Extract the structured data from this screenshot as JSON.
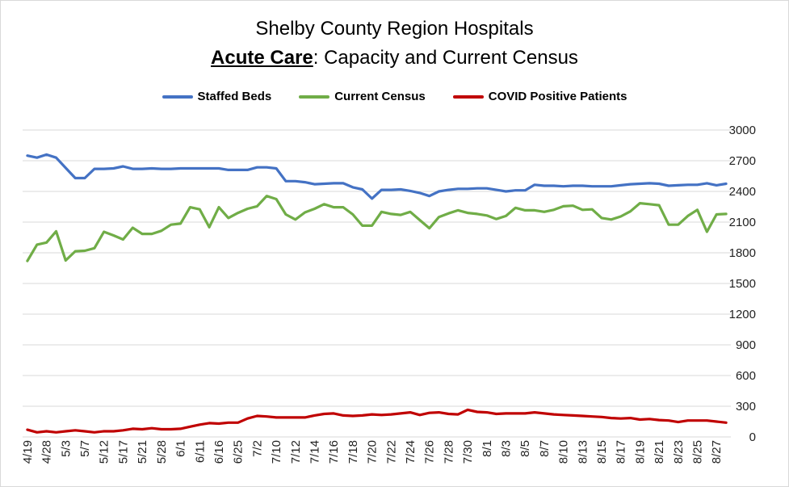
{
  "chart_data": {
    "type": "line",
    "title_line1": "Shelby County Region Hospitals",
    "title_emphasis": "Acute Care",
    "title_suffix": ": Capacity and Current Census",
    "ylim": [
      0,
      3000
    ],
    "yticks": [
      0,
      300,
      600,
      900,
      1200,
      1500,
      1800,
      2100,
      2400,
      2700,
      3000
    ],
    "grid": true,
    "legend_position": "top",
    "x_tick_labels": [
      "4/19",
      "4/28",
      "5/3",
      "5/7",
      "5/12",
      "5/17",
      "5/21",
      "5/28",
      "6/1",
      "6/11",
      "6/16",
      "6/25",
      "7/2",
      "7/10",
      "7/12",
      "7/14",
      "7/16",
      "7/18",
      "7/20",
      "7/22",
      "7/24",
      "7/26",
      "7/28",
      "7/30",
      "8/1",
      "8/3",
      "8/5",
      "8/7",
      "8/10",
      "8/13",
      "8/15",
      "8/17",
      "8/19",
      "8/21",
      "8/23",
      "8/25",
      "8/27"
    ],
    "series": [
      {
        "name": "Staffed Beds",
        "color": "#4472c4",
        "values": [
          2750,
          2730,
          2760,
          2730,
          2630,
          2530,
          2530,
          2620,
          2620,
          2625,
          2645,
          2620,
          2620,
          2625,
          2620,
          2620,
          2625,
          2625,
          2625,
          2625,
          2625,
          2610,
          2610,
          2610,
          2635,
          2635,
          2625,
          2500,
          2500,
          2490,
          2470,
          2475,
          2480,
          2480,
          2440,
          2420,
          2330,
          2415,
          2415,
          2420,
          2405,
          2385,
          2355,
          2400,
          2415,
          2425,
          2425,
          2430,
          2430,
          2415,
          2400,
          2410,
          2410,
          2465,
          2455,
          2455,
          2450,
          2455,
          2455,
          2450,
          2450,
          2450,
          2460,
          2470,
          2475,
          2480,
          2475,
          2455,
          2460,
          2465,
          2465,
          2480,
          2460,
          2475
        ]
      },
      {
        "name": "Current Census",
        "color": "#70ad47",
        "values": [
          1720,
          1880,
          1900,
          2010,
          1725,
          1815,
          1820,
          1845,
          2005,
          1970,
          1930,
          2045,
          1985,
          1985,
          2015,
          2075,
          2085,
          2245,
          2225,
          2050,
          2245,
          2140,
          2190,
          2230,
          2255,
          2355,
          2325,
          2175,
          2125,
          2195,
          2230,
          2275,
          2245,
          2245,
          2175,
          2065,
          2065,
          2200,
          2180,
          2170,
          2200,
          2120,
          2040,
          2150,
          2185,
          2215,
          2190,
          2180,
          2165,
          2130,
          2160,
          2240,
          2215,
          2215,
          2200,
          2220,
          2255,
          2260,
          2220,
          2225,
          2140,
          2125,
          2155,
          2205,
          2285,
          2275,
          2265,
          2075,
          2075,
          2160,
          2220,
          2005,
          2175,
          2180
        ]
      },
      {
        "name": "COVID Positive Patients",
        "color": "#c00000",
        "values": [
          70,
          45,
          55,
          45,
          55,
          65,
          55,
          45,
          55,
          55,
          65,
          80,
          75,
          85,
          75,
          75,
          80,
          100,
          120,
          135,
          130,
          140,
          140,
          180,
          205,
          200,
          190,
          190,
          190,
          190,
          210,
          225,
          230,
          210,
          205,
          210,
          220,
          215,
          220,
          230,
          240,
          215,
          235,
          240,
          225,
          220,
          265,
          245,
          240,
          225,
          230,
          230,
          230,
          240,
          230,
          220,
          215,
          210,
          205,
          200,
          195,
          185,
          180,
          185,
          170,
          175,
          165,
          160,
          145,
          160,
          160,
          160,
          150,
          140
        ]
      }
    ]
  }
}
